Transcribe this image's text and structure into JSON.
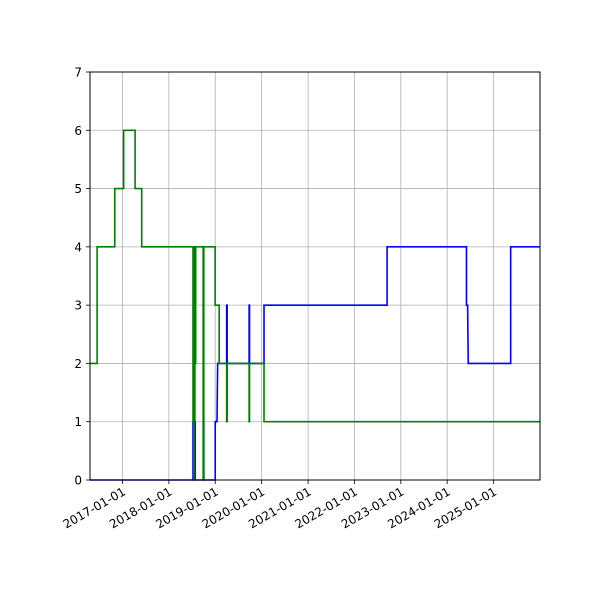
{
  "chart_data": {
    "type": "line",
    "title": "",
    "xlabel": "",
    "ylabel": "",
    "x_axis_type": "date",
    "xlim": [
      "2016-04-20",
      "2026-01-01"
    ],
    "ylim": [
      0,
      7
    ],
    "grid": true,
    "x_ticks": [
      "2017-01-01",
      "2018-01-01",
      "2019-01-01",
      "2020-01-01",
      "2021-01-01",
      "2022-01-01",
      "2023-01-01",
      "2024-01-01",
      "2025-01-01"
    ],
    "y_ticks": [
      "0",
      "1",
      "2",
      "3",
      "4",
      "5",
      "6",
      "7"
    ],
    "series": [
      {
        "color": "#0000ff",
        "points": [
          [
            "2016-04-20",
            0
          ],
          [
            "2018-07-10",
            0
          ],
          [
            "2018-07-10",
            1
          ],
          [
            "2018-07-12",
            1
          ],
          [
            "2018-07-12",
            0
          ],
          [
            "2018-07-18",
            0
          ],
          [
            "2018-07-18",
            4
          ],
          [
            "2018-07-20",
            4
          ],
          [
            "2018-07-20",
            0
          ],
          [
            "2018-07-25",
            0
          ],
          [
            "2018-07-25",
            1
          ],
          [
            "2018-07-27",
            1
          ],
          [
            "2018-07-27",
            0
          ],
          [
            "2018-10-01",
            0
          ],
          [
            "2018-10-01",
            1
          ],
          [
            "2018-10-03",
            1
          ],
          [
            "2018-10-03",
            0
          ],
          [
            "2019-01-01",
            0
          ],
          [
            "2019-01-01",
            1
          ],
          [
            "2019-01-15",
            1
          ],
          [
            "2019-01-20",
            2
          ],
          [
            "2019-04-01",
            2
          ],
          [
            "2019-04-01",
            3
          ],
          [
            "2019-04-05",
            3
          ],
          [
            "2019-04-05",
            2
          ],
          [
            "2019-09-25",
            2
          ],
          [
            "2019-09-25",
            3
          ],
          [
            "2019-09-28",
            3
          ],
          [
            "2019-09-28",
            2
          ],
          [
            "2020-01-20",
            2
          ],
          [
            "2020-01-20",
            3
          ],
          [
            "2022-09-15",
            3
          ],
          [
            "2022-09-15",
            4
          ],
          [
            "2024-06-01",
            4
          ],
          [
            "2024-06-01",
            3
          ],
          [
            "2024-06-10",
            3
          ],
          [
            "2024-06-15",
            2
          ],
          [
            "2025-05-15",
            2
          ],
          [
            "2025-05-15",
            4
          ],
          [
            "2026-01-01",
            4
          ]
        ]
      },
      {
        "color": "#008000",
        "points": [
          [
            "2016-04-20",
            2
          ],
          [
            "2016-06-15",
            2
          ],
          [
            "2016-06-15",
            4
          ],
          [
            "2016-11-01",
            4
          ],
          [
            "2016-11-01",
            5
          ],
          [
            "2017-01-10",
            5
          ],
          [
            "2017-01-10",
            6
          ],
          [
            "2017-04-10",
            6
          ],
          [
            "2017-04-10",
            5
          ],
          [
            "2017-06-01",
            5
          ],
          [
            "2017-06-01",
            4
          ],
          [
            "2018-07-10",
            4
          ],
          [
            "2018-07-10",
            1
          ],
          [
            "2018-07-13",
            1
          ],
          [
            "2018-07-13",
            4
          ],
          [
            "2018-07-16",
            4
          ],
          [
            "2018-07-16",
            0
          ],
          [
            "2018-07-19",
            0
          ],
          [
            "2018-07-19",
            4
          ],
          [
            "2018-07-22",
            4
          ],
          [
            "2018-07-22",
            1
          ],
          [
            "2018-07-25",
            1
          ],
          [
            "2018-07-25",
            4
          ],
          [
            "2018-07-28",
            4
          ],
          [
            "2018-07-28",
            2
          ],
          [
            "2018-07-31",
            2
          ],
          [
            "2018-07-31",
            4
          ],
          [
            "2018-09-28",
            4
          ],
          [
            "2018-09-28",
            0
          ],
          [
            "2018-10-03",
            0
          ],
          [
            "2018-10-03",
            4
          ],
          [
            "2018-12-31",
            4
          ],
          [
            "2018-12-31",
            3
          ],
          [
            "2019-02-01",
            3
          ],
          [
            "2019-02-01",
            2
          ],
          [
            "2019-04-01",
            2
          ],
          [
            "2019-04-01",
            1
          ],
          [
            "2019-04-05",
            1
          ],
          [
            "2019-04-05",
            2
          ],
          [
            "2019-09-25",
            2
          ],
          [
            "2019-09-25",
            1
          ],
          [
            "2019-09-28",
            1
          ],
          [
            "2019-09-28",
            2
          ],
          [
            "2020-01-20",
            2
          ],
          [
            "2020-01-20",
            1
          ],
          [
            "2026-01-01",
            1
          ]
        ]
      }
    ]
  }
}
